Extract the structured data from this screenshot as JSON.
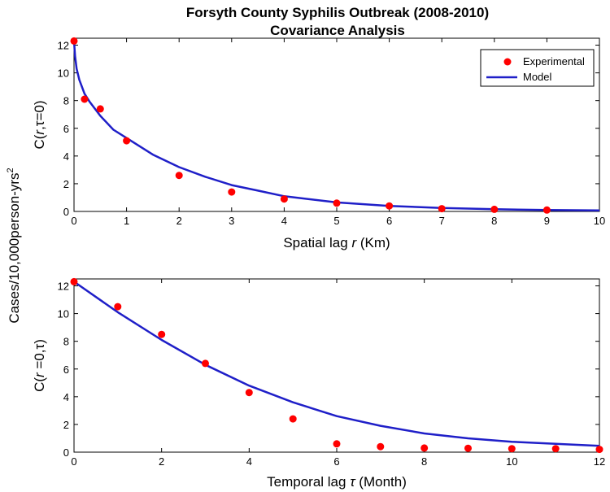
{
  "figure": {
    "title_line1": "Forsyth County Syphilis Outbreak (2008-2010)",
    "title_line2": "Covariance Analysis",
    "shared_ylabel": "Cases/10,000person-yrs",
    "shared_ylabel_sup": "2"
  },
  "legend": {
    "experimental": "Experimental",
    "model": "Model"
  },
  "colors": {
    "experimental": "#ff0000",
    "model": "#1f1fc8"
  },
  "chart_data": [
    {
      "type": "scatter",
      "panel": "spatial",
      "xlabel_pre": "Spatial lag ",
      "xlabel_var": "r",
      "xlabel_post": " (Km)",
      "ylabel_parts": [
        "C(",
        "r",
        ",τ=0)"
      ],
      "xlim": [
        0,
        10
      ],
      "ylim": [
        0,
        12.5
      ],
      "xticks": [
        0,
        1,
        2,
        3,
        4,
        5,
        6,
        7,
        8,
        9,
        10
      ],
      "yticks": [
        0,
        2,
        4,
        6,
        8,
        10,
        12
      ],
      "series": [
        {
          "name": "Experimental",
          "kind": "points",
          "x": [
            0,
            0.2,
            0.5,
            1,
            2,
            3,
            4,
            5,
            6,
            7,
            8,
            9
          ],
          "y": [
            12.3,
            8.1,
            7.4,
            5.1,
            2.6,
            1.4,
            0.9,
            0.6,
            0.4,
            0.2,
            0.15,
            0.1
          ]
        },
        {
          "name": "Model",
          "kind": "line",
          "x": [
            0,
            0.02,
            0.05,
            0.1,
            0.2,
            0.3,
            0.5,
            0.75,
            1,
            1.5,
            2,
            2.5,
            3,
            3.5,
            4,
            5,
            6,
            7,
            8,
            9,
            10
          ],
          "y": [
            12.3,
            11.2,
            10.3,
            9.5,
            8.5,
            7.9,
            6.9,
            5.9,
            5.3,
            4.1,
            3.2,
            2.5,
            1.9,
            1.5,
            1.1,
            0.65,
            0.4,
            0.25,
            0.16,
            0.1,
            0.07
          ]
        }
      ]
    },
    {
      "type": "scatter",
      "panel": "temporal",
      "xlabel_pre": "Temporal lag ",
      "xlabel_var": "τ",
      "xlabel_post": " (Month)",
      "ylabel_parts": [
        "C(",
        "r",
        " =0,τ)"
      ],
      "xlim": [
        0,
        12
      ],
      "ylim": [
        0,
        12.5
      ],
      "xticks": [
        0,
        2,
        4,
        6,
        8,
        10,
        12
      ],
      "yticks": [
        0,
        2,
        4,
        6,
        8,
        10,
        12
      ],
      "series": [
        {
          "name": "Experimental",
          "kind": "points",
          "x": [
            0,
            1,
            2,
            3,
            4,
            5,
            6,
            7,
            8,
            9,
            10,
            11,
            12
          ],
          "y": [
            12.3,
            10.5,
            8.5,
            6.4,
            4.3,
            2.4,
            0.6,
            0.4,
            0.3,
            0.28,
            0.25,
            0.25,
            0.2
          ]
        },
        {
          "name": "Model",
          "kind": "line",
          "x": [
            0,
            1,
            2,
            3,
            4,
            5,
            6,
            7,
            8,
            9,
            10,
            11,
            12
          ],
          "y": [
            12.3,
            10.1,
            8.1,
            6.3,
            4.8,
            3.6,
            2.6,
            1.9,
            1.35,
            1.0,
            0.75,
            0.6,
            0.45
          ]
        }
      ]
    }
  ]
}
